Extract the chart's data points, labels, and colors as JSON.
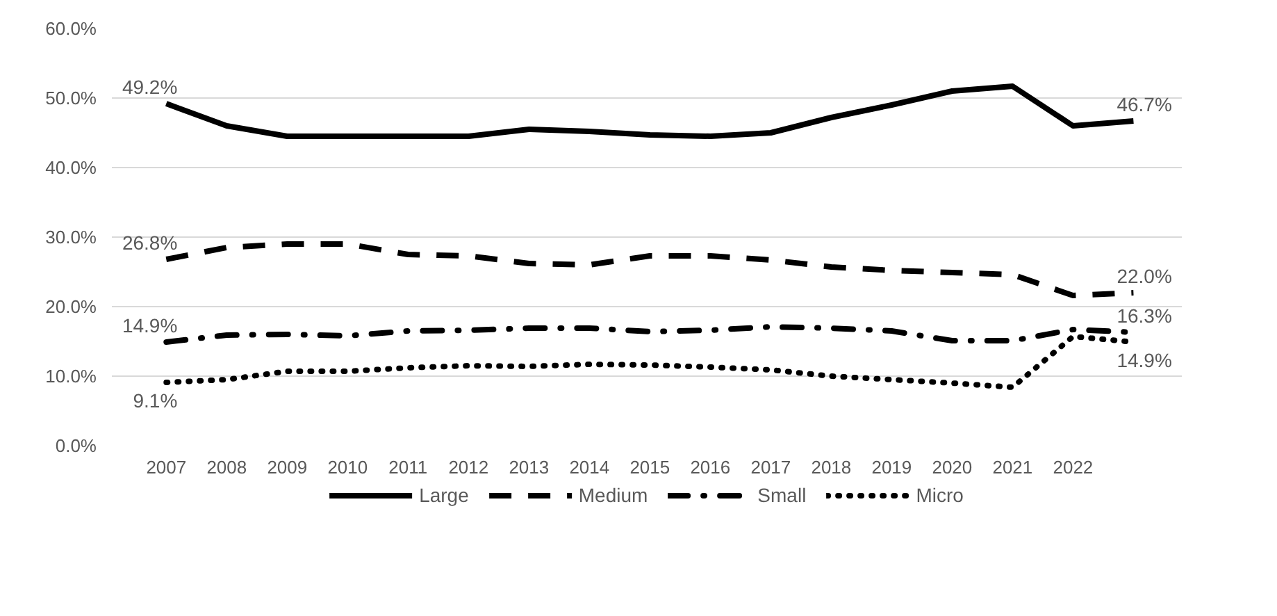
{
  "chart_data": {
    "type": "line",
    "categories": [
      "2007",
      "2008",
      "2009",
      "2010",
      "2011",
      "2012",
      "2013",
      "2014",
      "2015",
      "2016",
      "2017",
      "2018",
      "2019",
      "2020",
      "2021",
      "2022",
      null
    ],
    "series": [
      {
        "name": "Large",
        "color": "#000000",
        "line_style": "solid",
        "values": [
          49.2,
          46.0,
          44.5,
          44.5,
          44.5,
          44.5,
          45.5,
          45.2,
          44.7,
          44.5,
          45.0,
          47.2,
          49.0,
          51.0,
          51.7,
          46.0,
          46.7
        ],
        "value_labels": [
          "49.2%",
          null,
          null,
          null,
          null,
          null,
          null,
          null,
          null,
          null,
          null,
          null,
          null,
          null,
          null,
          null,
          "46.7%"
        ]
      },
      {
        "name": "Medium",
        "color": "#000000",
        "line_style": "dashed",
        "values": [
          26.8,
          28.5,
          29.0,
          29.0,
          27.5,
          27.3,
          26.2,
          26.0,
          27.3,
          27.3,
          26.7,
          25.7,
          25.2,
          24.9,
          24.6,
          21.6,
          22.0
        ],
        "value_labels": [
          "26.8%",
          null,
          null,
          null,
          null,
          null,
          null,
          null,
          null,
          null,
          null,
          null,
          null,
          null,
          null,
          null,
          "22.0%"
        ]
      },
      {
        "name": "Small",
        "color": "#000000",
        "line_style": "dashdot",
        "values": [
          14.9,
          15.9,
          16.0,
          15.8,
          16.5,
          16.6,
          16.9,
          16.9,
          16.4,
          16.6,
          17.1,
          16.9,
          16.5,
          15.1,
          15.1,
          16.7,
          16.3
        ],
        "value_labels": [
          "14.9%",
          null,
          null,
          null,
          null,
          null,
          null,
          null,
          null,
          null,
          null,
          null,
          null,
          null,
          null,
          null,
          "16.3%"
        ]
      },
      {
        "name": "Micro",
        "color": "#000000",
        "line_style": "dotted",
        "values": [
          9.1,
          9.5,
          10.7,
          10.7,
          11.2,
          11.5,
          11.4,
          11.7,
          11.6,
          11.3,
          10.9,
          10.0,
          9.5,
          9.0,
          8.4,
          15.7,
          14.9
        ],
        "value_labels": [
          "9.1%",
          null,
          null,
          null,
          null,
          null,
          null,
          null,
          null,
          null,
          null,
          null,
          null,
          null,
          null,
          null,
          "14.9%"
        ]
      }
    ],
    "ylim": [
      0,
      60
    ],
    "yticks": [
      {
        "value": 0,
        "label": "0.0%"
      },
      {
        "value": 10,
        "label": "10.0%"
      },
      {
        "value": 20,
        "label": "20.0%"
      },
      {
        "value": 30,
        "label": "30.0%"
      },
      {
        "value": 40,
        "label": "40.0%"
      },
      {
        "value": 50,
        "label": "50.0%"
      },
      {
        "value": 60,
        "label": "60.0%"
      }
    ],
    "grid": "y",
    "legend": "bottom"
  }
}
